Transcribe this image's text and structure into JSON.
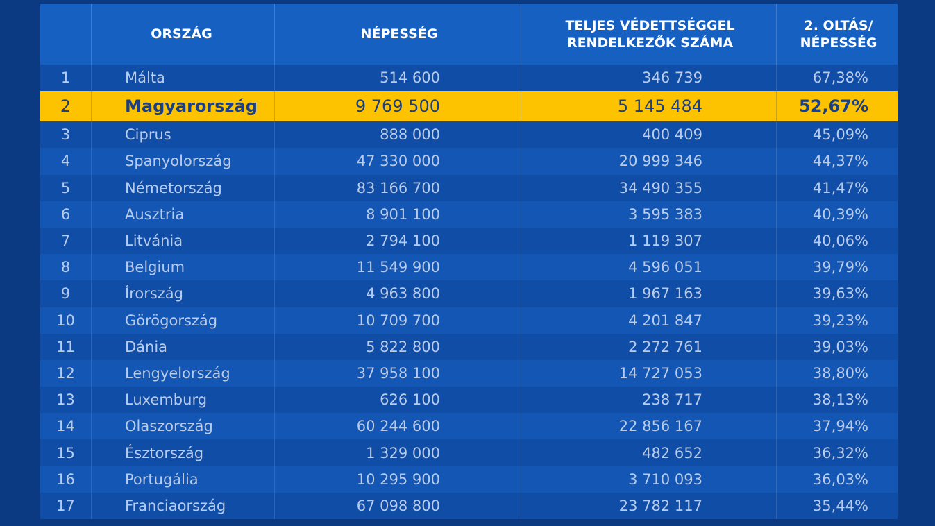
{
  "header": {
    "rank": "",
    "country": "ORSZÁG",
    "population": "NÉPESSÉG",
    "protected_line1": "TELJES VÉDETTSÉGGEL",
    "protected_line2": "RENDELKEZŐK SZÁMA",
    "ratio_line1": "2. OLTÁS/",
    "ratio_line2": "NÉPESSÉG"
  },
  "colors": {
    "background": "#0c3a82",
    "header": "#1660c2",
    "row_odd": "#0f4da6",
    "row_even": "#1356b3",
    "highlight": "#fec300",
    "highlight_text": "#1a3f86",
    "text": "#b9cbea"
  },
  "chart_data": {
    "type": "table",
    "columns": [
      "",
      "ORSZÁG",
      "NÉPESSÉG",
      "TELJES VÉDETTSÉGGEL RENDELKEZŐK SZÁMA",
      "2. OLTÁS/ NÉPESSÉG"
    ],
    "highlighted_rank": "2",
    "rows": [
      {
        "rank": "1",
        "country": "Málta",
        "population": "514 600",
        "protected": "346 739",
        "ratio": "67,38%"
      },
      {
        "rank": "2",
        "country": "Magyarország",
        "population": "9 769 500",
        "protected": "5 145 484",
        "ratio": "52,67%"
      },
      {
        "rank": "3",
        "country": "Ciprus",
        "population": "888 000",
        "protected": "400 409",
        "ratio": "45,09%"
      },
      {
        "rank": "4",
        "country": "Spanyolország",
        "population": "47 330 000",
        "protected": "20 999 346",
        "ratio": "44,37%"
      },
      {
        "rank": "5",
        "country": "Németország",
        "population": "83 166 700",
        "protected": "34 490 355",
        "ratio": "41,47%"
      },
      {
        "rank": "6",
        "country": "Ausztria",
        "population": "8 901 100",
        "protected": "3 595 383",
        "ratio": "40,39%"
      },
      {
        "rank": "7",
        "country": "Litvánia",
        "population": "2 794 100",
        "protected": "1 119 307",
        "ratio": "40,06%"
      },
      {
        "rank": "8",
        "country": "Belgium",
        "population": "11 549 900",
        "protected": "4 596 051",
        "ratio": "39,79%"
      },
      {
        "rank": "9",
        "country": "Írország",
        "population": "4 963 800",
        "protected": "1 967 163",
        "ratio": "39,63%"
      },
      {
        "rank": "10",
        "country": "Görögország",
        "population": "10 709 700",
        "protected": "4 201 847",
        "ratio": "39,23%"
      },
      {
        "rank": "11",
        "country": "Dánia",
        "population": "5 822 800",
        "protected": "2 272 761",
        "ratio": "39,03%"
      },
      {
        "rank": "12",
        "country": "Lengyelország",
        "population": "37 958 100",
        "protected": "14 727 053",
        "ratio": "38,80%"
      },
      {
        "rank": "13",
        "country": "Luxemburg",
        "population": "626 100",
        "protected": "238 717",
        "ratio": "38,13%"
      },
      {
        "rank": "14",
        "country": "Olaszország",
        "population": "60 244 600",
        "protected": "22 856 167",
        "ratio": "37,94%"
      },
      {
        "rank": "15",
        "country": "Észtország",
        "population": "1 329 000",
        "protected": "482 652",
        "ratio": "36,32%"
      },
      {
        "rank": "16",
        "country": "Portugália",
        "population": "10 295 900",
        "protected": "3 710 093",
        "ratio": "36,03%"
      },
      {
        "rank": "17",
        "country": "Franciaország",
        "population": "67 098 800",
        "protected": "23 782 117",
        "ratio": "35,44%"
      }
    ]
  }
}
